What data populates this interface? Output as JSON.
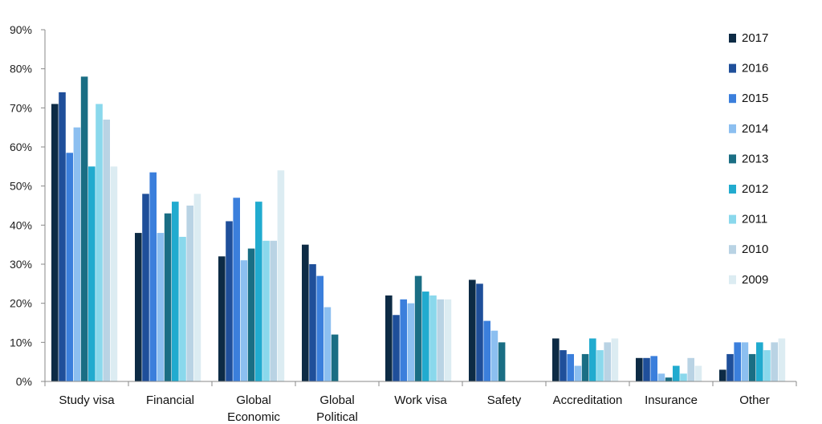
{
  "chart_data": {
    "type": "bar",
    "title": "",
    "xlabel": "",
    "ylabel": "",
    "ylim": [
      0,
      90
    ],
    "yticks": [
      "0%",
      "10%",
      "20%",
      "30%",
      "40%",
      "50%",
      "60%",
      "70%",
      "80%",
      "90%"
    ],
    "grid": false,
    "legend_position": "right",
    "categories": [
      [
        "Study visa"
      ],
      [
        "Financial"
      ],
      [
        "Global",
        "Economic"
      ],
      [
        "Global",
        "Political"
      ],
      [
        "Work visa"
      ],
      [
        "Safety"
      ],
      [
        "Accreditation"
      ],
      [
        "Insurance"
      ],
      [
        "Other"
      ]
    ],
    "series": [
      {
        "name": "2017",
        "color": "#0d2b45",
        "values": [
          71,
          38,
          32,
          35,
          22,
          26,
          11,
          6,
          3
        ]
      },
      {
        "name": "2016",
        "color": "#1f4f9a",
        "values": [
          74,
          48,
          41,
          30,
          17,
          25,
          8,
          6,
          7
        ]
      },
      {
        "name": "2015",
        "color": "#3b7fdc",
        "values": [
          58.5,
          53.5,
          47,
          27,
          21,
          15.5,
          7,
          6.5,
          10
        ]
      },
      {
        "name": "2014",
        "color": "#8cbff0",
        "values": [
          65,
          38,
          31,
          19,
          20,
          13,
          4,
          2,
          10
        ]
      },
      {
        "name": "2013",
        "color": "#1a6e84",
        "values": [
          78,
          43,
          34,
          12,
          27,
          10,
          7,
          1,
          7
        ]
      },
      {
        "name": "2012",
        "color": "#21abcf",
        "values": [
          55,
          46,
          46,
          null,
          23,
          null,
          11,
          4,
          10
        ]
      },
      {
        "name": "2011",
        "color": "#8ad8ec",
        "values": [
          71,
          37,
          36,
          null,
          22,
          null,
          8,
          2,
          8
        ]
      },
      {
        "name": "2010",
        "color": "#b9d3e4",
        "values": [
          67,
          45,
          36,
          null,
          21,
          null,
          10,
          6,
          10
        ]
      },
      {
        "name": "2009",
        "color": "#dcecf2",
        "values": [
          55,
          48,
          54,
          null,
          21,
          null,
          11,
          4,
          11
        ]
      }
    ]
  }
}
